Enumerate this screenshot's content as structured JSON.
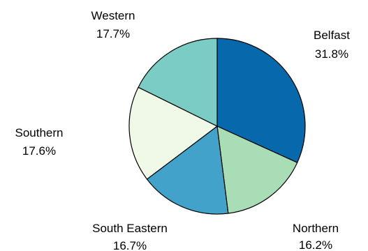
{
  "chart_data": {
    "type": "pie",
    "slices": [
      {
        "label": "Belfast",
        "value": 31.8,
        "value_label": "31.8%",
        "color": "#0868ac"
      },
      {
        "label": "Northern",
        "value": 16.2,
        "value_label": "16.2%",
        "color": "#a8ddb5"
      },
      {
        "label": "South Eastern",
        "value": 16.7,
        "value_label": "16.7%",
        "color": "#43a2ca"
      },
      {
        "label": "Southern",
        "value": 17.6,
        "value_label": "17.6%",
        "color": "#f0f9e8"
      },
      {
        "label": "Western",
        "value": 17.7,
        "value_label": "17.7%",
        "color": "#7bccc4"
      }
    ],
    "start_angle": "12 o'clock",
    "direction": "clockwise",
    "legend": "none"
  }
}
